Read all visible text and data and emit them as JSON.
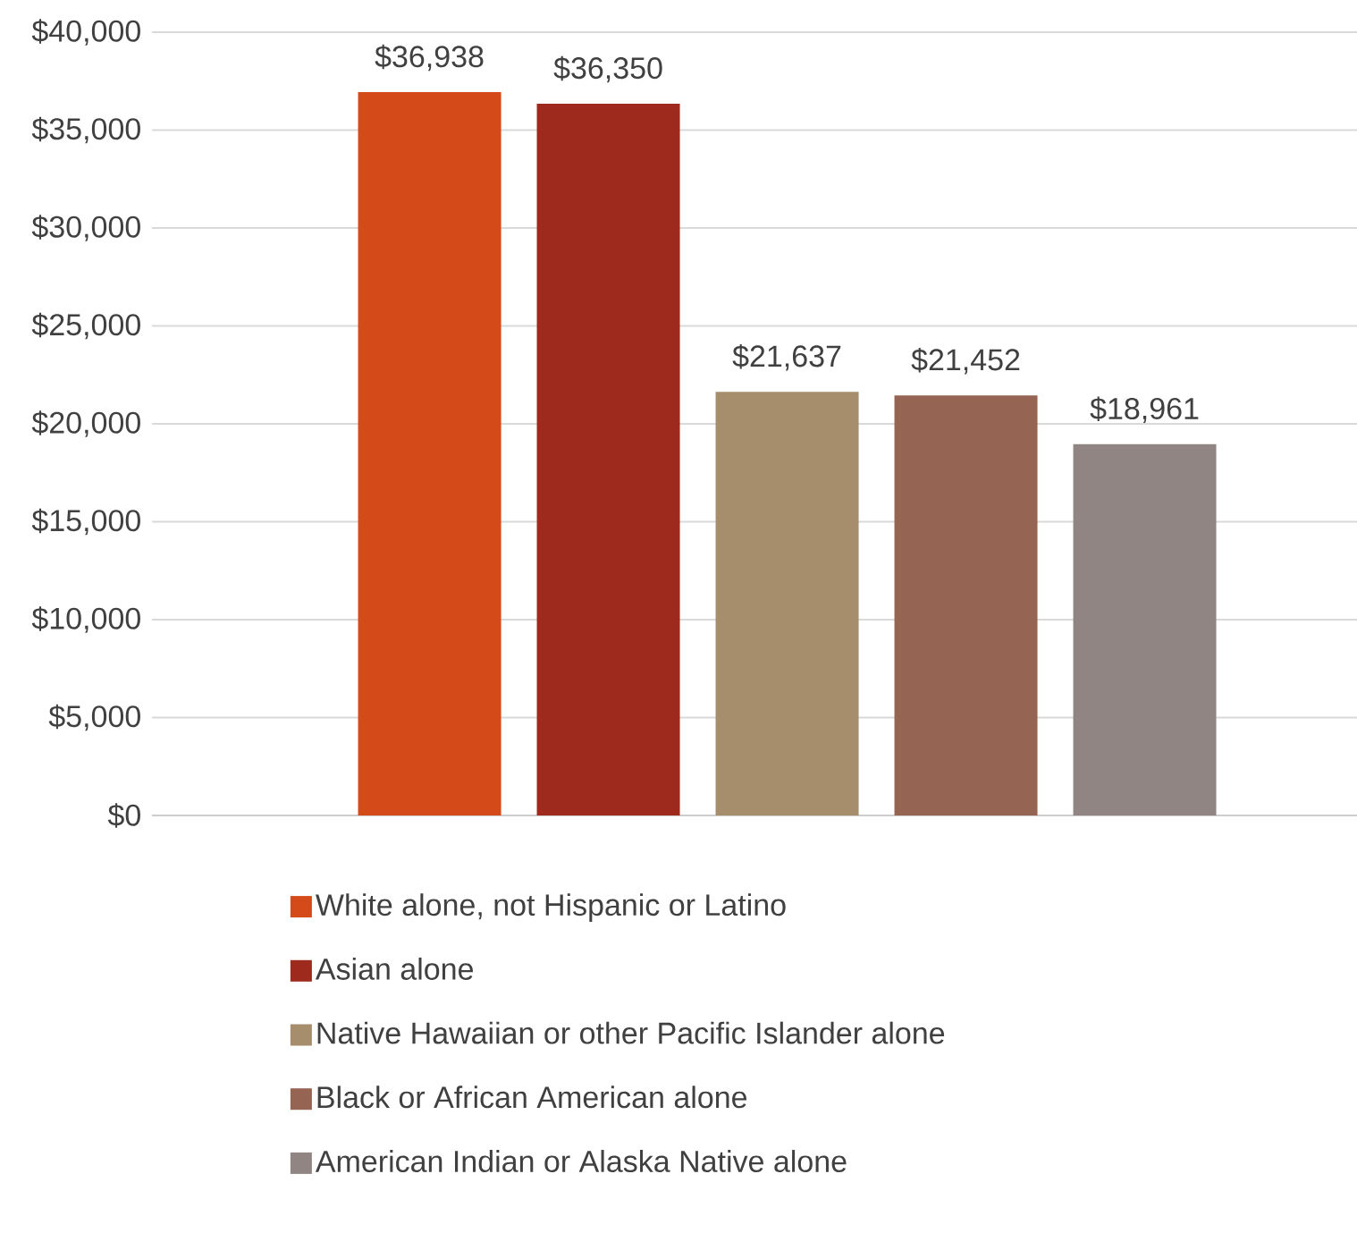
{
  "chart_data": {
    "type": "bar",
    "categories": [
      null
    ],
    "series": [
      {
        "name": "White alone, not Hispanic or Latino",
        "color": "#d44a19",
        "values": [
          36938
        ],
        "value_labels": [
          "$36,938"
        ]
      },
      {
        "name": "Asian alone",
        "color": "#9e2a1e",
        "values": [
          36350
        ],
        "value_labels": [
          "$36,350"
        ]
      },
      {
        "name": "Native Hawaiian or other Pacific Islander alone",
        "color": "#a68e6c",
        "values": [
          21637
        ],
        "value_labels": [
          "$21,637"
        ]
      },
      {
        "name": "Black or African American alone",
        "color": "#956452",
        "values": [
          21452
        ],
        "value_labels": [
          "$21,452"
        ]
      },
      {
        "name": "American Indian or Alaska Native alone",
        "color": "#918583",
        "values": [
          18961
        ],
        "value_labels": [
          "$18,961"
        ]
      }
    ],
    "ylim": [
      0,
      40000
    ],
    "yticks": [
      {
        "value": 0,
        "label": "$0"
      },
      {
        "value": 5000,
        "label": "$5,000"
      },
      {
        "value": 10000,
        "label": "$10,000"
      },
      {
        "value": 15000,
        "label": "$15,000"
      },
      {
        "value": 20000,
        "label": "$20,000"
      },
      {
        "value": 25000,
        "label": "$25,000"
      },
      {
        "value": 30000,
        "label": "$30,000"
      },
      {
        "value": 35000,
        "label": "$35,000"
      },
      {
        "value": 40000,
        "label": "$40,000"
      }
    ],
    "grid": "y",
    "legend": "bottom"
  }
}
